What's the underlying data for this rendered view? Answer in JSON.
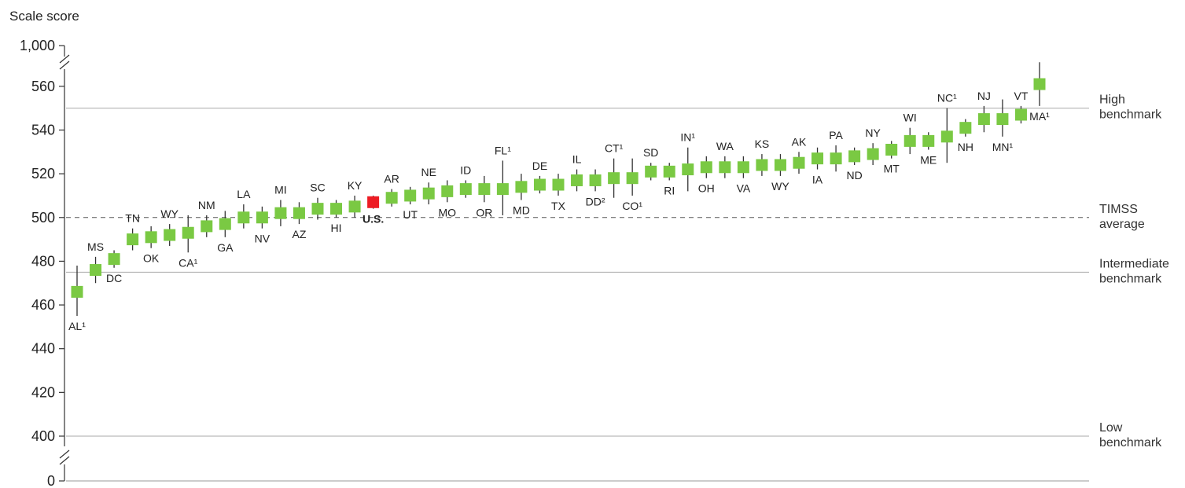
{
  "chart_data": {
    "type": "scatter",
    "ylabel": "Scale score",
    "yticks": [
      {
        "value": 1000,
        "label": "1,000"
      },
      {
        "value": 560,
        "label": "560"
      },
      {
        "value": 540,
        "label": "540"
      },
      {
        "value": 520,
        "label": "520"
      },
      {
        "value": 500,
        "label": "500"
      },
      {
        "value": 480,
        "label": "480"
      },
      {
        "value": 460,
        "label": "460"
      },
      {
        "value": 440,
        "label": "440"
      },
      {
        "value": 420,
        "label": "420"
      },
      {
        "value": 400,
        "label": "400"
      },
      {
        "value": 0,
        "label": "0"
      }
    ],
    "ylim": [
      400,
      570
    ],
    "axis_break": true,
    "benchmarks": [
      {
        "name": "High benchmark",
        "lines": [
          "High",
          "benchmark"
        ],
        "value": 550,
        "style": "solid"
      },
      {
        "name": "TIMSS average",
        "lines": [
          "TIMSS",
          "average"
        ],
        "value": 500,
        "style": "dashed"
      },
      {
        "name": "Intermediate benchmark",
        "lines": [
          "Intermediate",
          "benchmark"
        ],
        "value": 475,
        "style": "solid"
      },
      {
        "name": "Low benchmark",
        "lines": [
          "Low",
          "benchmark"
        ],
        "value": 400,
        "style": "solid"
      }
    ],
    "colors": {
      "state": "#7ac943",
      "us": "#ed1c24",
      "line": "#999999",
      "whisker": "#333333"
    },
    "points": [
      {
        "label": "AL¹",
        "score": 466,
        "lo": 455,
        "hi": 478,
        "pos": "below"
      },
      {
        "label": "MS",
        "score": 476,
        "lo": 470,
        "hi": 482,
        "pos": "above"
      },
      {
        "label": "DC",
        "score": 481,
        "lo": 477,
        "hi": 485,
        "pos": "below"
      },
      {
        "label": "TN",
        "score": 490,
        "lo": 485,
        "hi": 495,
        "pos": "above"
      },
      {
        "label": "OK",
        "score": 491,
        "lo": 486,
        "hi": 496,
        "pos": "below"
      },
      {
        "label": "WY",
        "score": 492,
        "lo": 487,
        "hi": 497,
        "pos": "above"
      },
      {
        "label": "CA¹",
        "score": 493,
        "lo": 484,
        "hi": 501,
        "pos": "below"
      },
      {
        "label": "NM",
        "score": 496,
        "lo": 491,
        "hi": 501,
        "pos": "above"
      },
      {
        "label": "GA",
        "score": 497,
        "lo": 491,
        "hi": 503,
        "pos": "below"
      },
      {
        "label": "LA",
        "score": 500,
        "lo": 495,
        "hi": 506,
        "pos": "above"
      },
      {
        "label": "NV",
        "score": 500,
        "lo": 495,
        "hi": 505,
        "pos": "below"
      },
      {
        "label": "MI",
        "score": 502,
        "lo": 496,
        "hi": 508,
        "pos": "above"
      },
      {
        "label": "AZ",
        "score": 502,
        "lo": 497,
        "hi": 507,
        "pos": "below"
      },
      {
        "label": "SC",
        "score": 504,
        "lo": 499,
        "hi": 509,
        "pos": "above"
      },
      {
        "label": "HI",
        "score": 504,
        "lo": 500,
        "hi": 508,
        "pos": "below"
      },
      {
        "label": "KY",
        "score": 505,
        "lo": 500,
        "hi": 510,
        "pos": "above"
      },
      {
        "label": "U.S.",
        "score": 507,
        "lo": 504,
        "hi": 510,
        "pos": "below",
        "highlight": true
      },
      {
        "label": "AR",
        "score": 509,
        "lo": 505,
        "hi": 513,
        "pos": "above"
      },
      {
        "label": "UT",
        "score": 510,
        "lo": 506,
        "hi": 514,
        "pos": "below"
      },
      {
        "label": "NE",
        "score": 511,
        "lo": 506,
        "hi": 516,
        "pos": "above"
      },
      {
        "label": "MO",
        "score": 512,
        "lo": 507,
        "hi": 517,
        "pos": "below"
      },
      {
        "label": "ID",
        "score": 513,
        "lo": 509,
        "hi": 517,
        "pos": "above"
      },
      {
        "label": "OR",
        "score": 513,
        "lo": 507,
        "hi": 519,
        "pos": "below"
      },
      {
        "label": "FL¹",
        "score": 513,
        "lo": 501,
        "hi": 526,
        "pos": "above"
      },
      {
        "label": "MD",
        "score": 514,
        "lo": 508,
        "hi": 520,
        "pos": "below"
      },
      {
        "label": "DE",
        "score": 515,
        "lo": 511,
        "hi": 519,
        "pos": "above"
      },
      {
        "label": "TX",
        "score": 515,
        "lo": 510,
        "hi": 520,
        "pos": "below"
      },
      {
        "label": "IL",
        "score": 517,
        "lo": 512,
        "hi": 522,
        "pos": "above"
      },
      {
        "label": "DD²",
        "score": 517,
        "lo": 512,
        "hi": 522,
        "pos": "below"
      },
      {
        "label": "CT¹",
        "score": 518,
        "lo": 509,
        "hi": 527,
        "pos": "above"
      },
      {
        "label": "CO¹",
        "score": 518,
        "lo": 510,
        "hi": 527,
        "pos": "below"
      },
      {
        "label": "SD",
        "score": 521,
        "lo": 517,
        "hi": 525,
        "pos": "above"
      },
      {
        "label": "RI",
        "score": 521,
        "lo": 517,
        "hi": 525,
        "pos": "below"
      },
      {
        "label": "IN¹",
        "score": 522,
        "lo": 512,
        "hi": 532,
        "pos": "above"
      },
      {
        "label": "OH",
        "score": 523,
        "lo": 518,
        "hi": 528,
        "pos": "below"
      },
      {
        "label": "WA",
        "score": 523,
        "lo": 518,
        "hi": 528,
        "pos": "above"
      },
      {
        "label": "VA",
        "score": 523,
        "lo": 518,
        "hi": 528,
        "pos": "below"
      },
      {
        "label": "KS",
        "score": 524,
        "lo": 519,
        "hi": 529,
        "pos": "above"
      },
      {
        "label": "WY",
        "score": 524,
        "lo": 519,
        "hi": 529,
        "pos": "below"
      },
      {
        "label": "AK",
        "score": 525,
        "lo": 520,
        "hi": 530,
        "pos": "above"
      },
      {
        "label": "IA",
        "score": 527,
        "lo": 522,
        "hi": 532,
        "pos": "below"
      },
      {
        "label": "PA",
        "score": 527,
        "lo": 521,
        "hi": 533,
        "pos": "above"
      },
      {
        "label": "ND",
        "score": 528,
        "lo": 524,
        "hi": 532,
        "pos": "below"
      },
      {
        "label": "NY",
        "score": 529,
        "lo": 524,
        "hi": 534,
        "pos": "above"
      },
      {
        "label": "MT",
        "score": 531,
        "lo": 527,
        "hi": 535,
        "pos": "below"
      },
      {
        "label": "WI",
        "score": 535,
        "lo": 529,
        "hi": 541,
        "pos": "above"
      },
      {
        "label": "ME",
        "score": 535,
        "lo": 531,
        "hi": 539,
        "pos": "below"
      },
      {
        "label": "NC¹",
        "score": 537,
        "lo": 525,
        "hi": 550,
        "pos": "above"
      },
      {
        "label": "NH",
        "score": 541,
        "lo": 537,
        "hi": 545,
        "pos": "below"
      },
      {
        "label": "NJ",
        "score": 545,
        "lo": 539,
        "hi": 551,
        "pos": "above"
      },
      {
        "label": "MN¹",
        "score": 545,
        "lo": 537,
        "hi": 554,
        "pos": "below"
      },
      {
        "label": "VT",
        "score": 547,
        "lo": 543,
        "hi": 551,
        "pos": "above"
      },
      {
        "label": "MA¹",
        "score": 561,
        "lo": 551,
        "hi": 571,
        "pos": "below"
      }
    ]
  }
}
